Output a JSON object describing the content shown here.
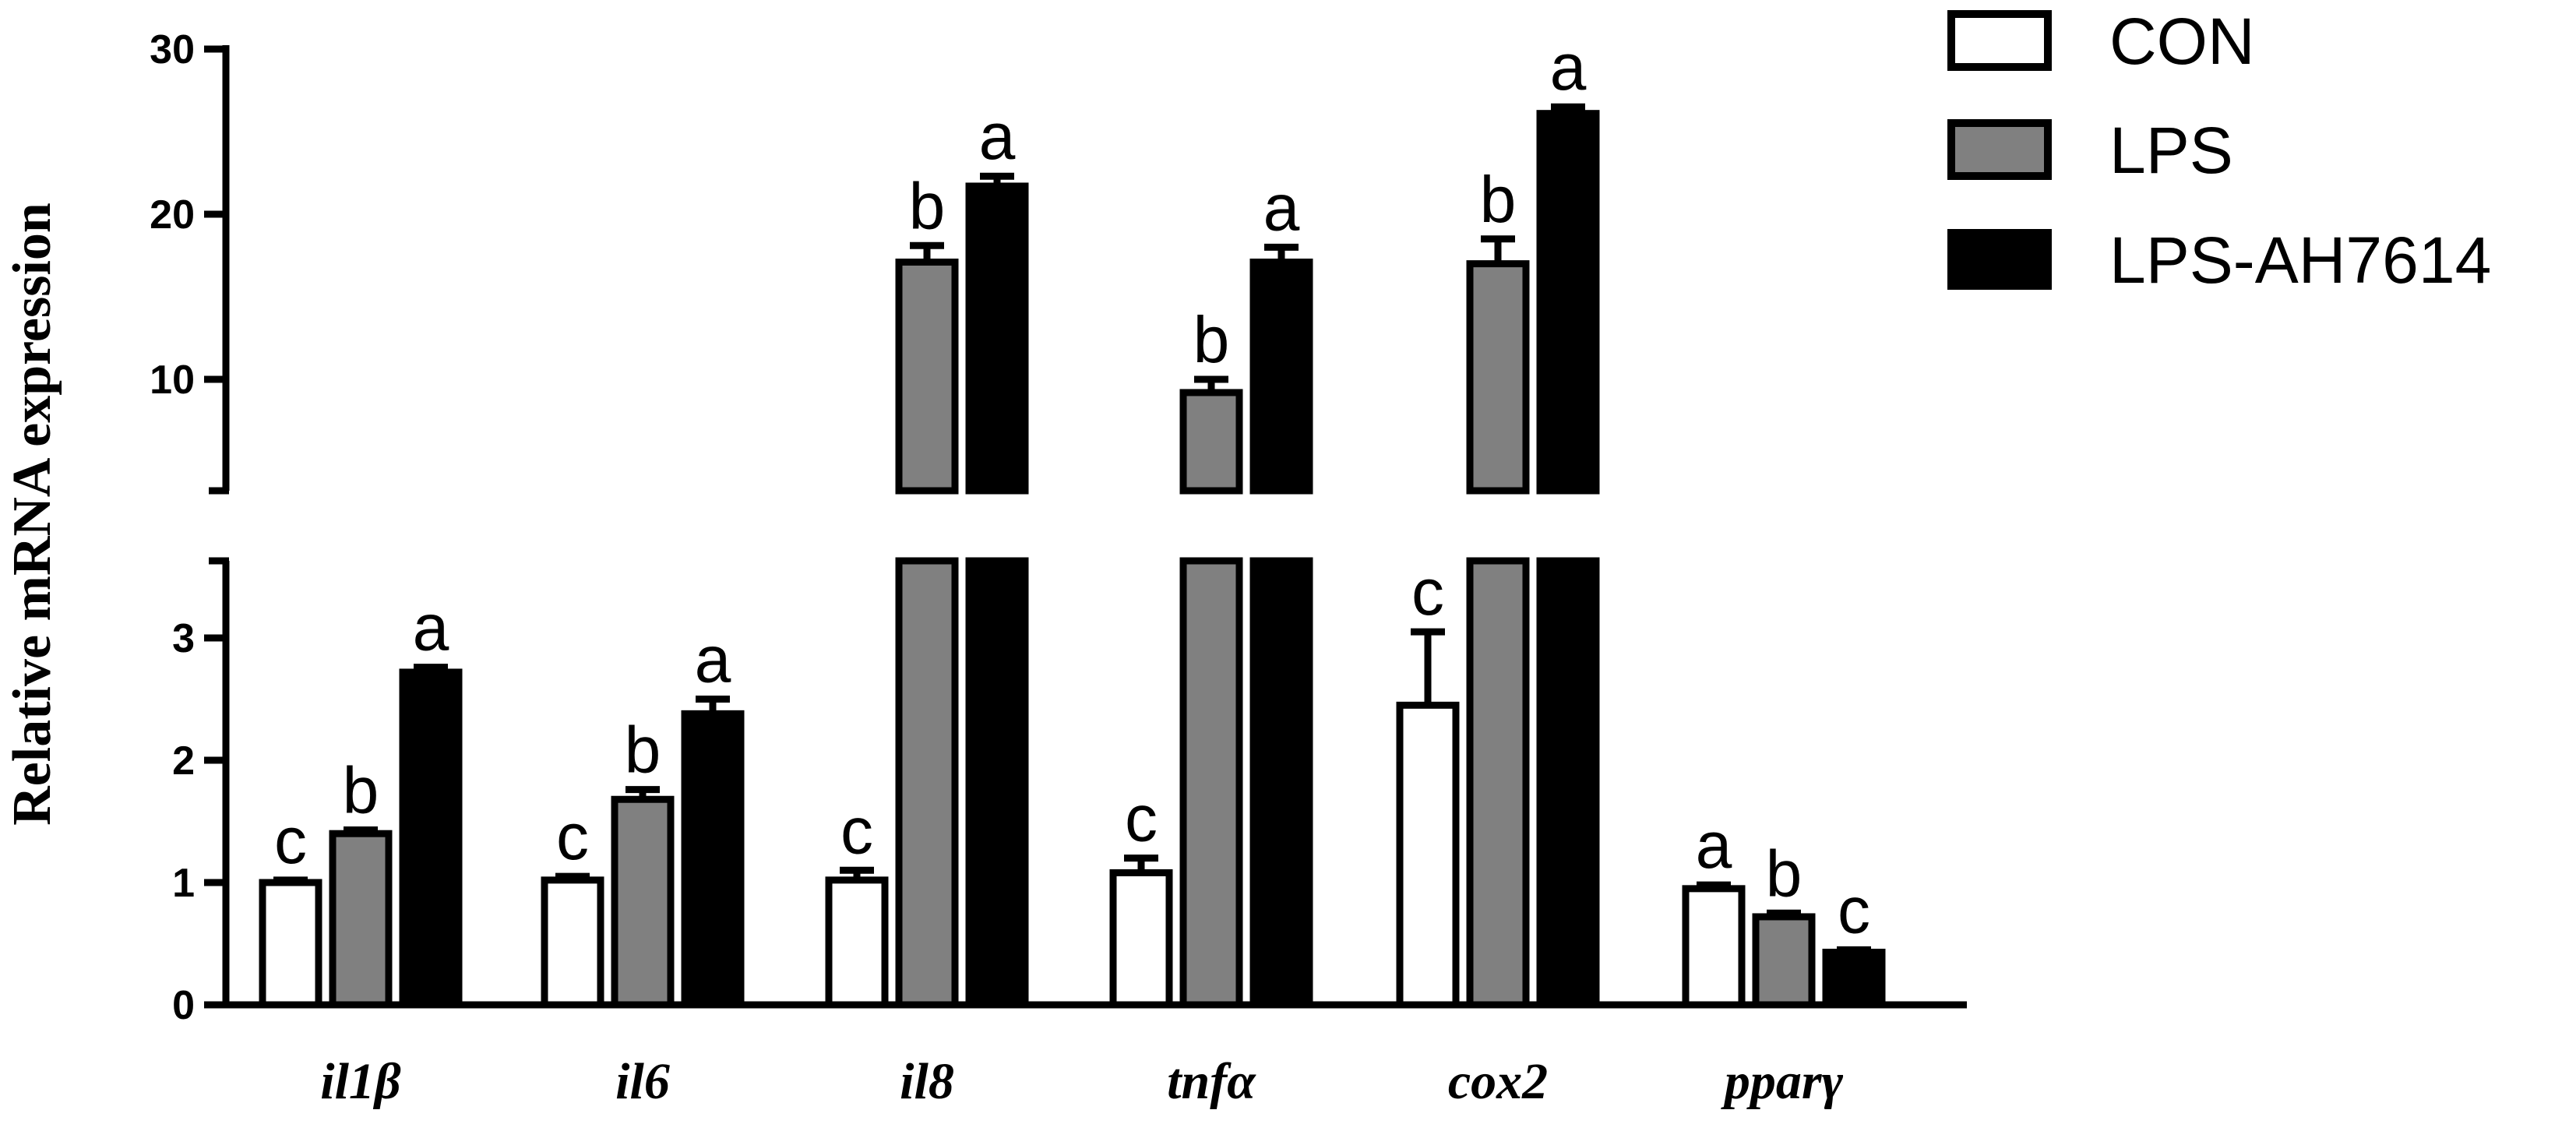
{
  "chart_data": {
    "type": "bar",
    "ylabel": "Relative  mRNA expression",
    "xlabel": "",
    "categories": [
      "il1β",
      "il6",
      "il8",
      "tnfα",
      "cox2",
      "pparγ"
    ],
    "y_axis": {
      "broken": true,
      "lower_segment": {
        "range": [
          0,
          3.6
        ],
        "ticks": [
          "0",
          "1",
          "2",
          "3"
        ]
      },
      "upper_segment": {
        "range": [
          4,
          30
        ],
        "ticks": [
          "10",
          "20",
          "30"
        ]
      }
    },
    "legend_position": "top-right",
    "series": [
      {
        "name": "CON",
        "fill": "#ffffff",
        "values": [
          1.0,
          1.02,
          1.02,
          1.08,
          2.45,
          0.95
        ],
        "errors": [
          0.02,
          0.03,
          0.08,
          0.12,
          0.6,
          0.03
        ],
        "letters": [
          "c",
          "c",
          "c",
          "c",
          "c",
          "a"
        ]
      },
      {
        "name": "LPS",
        "fill": "#808080",
        "values": [
          1.4,
          1.68,
          17.1,
          9.2,
          17.0,
          0.72
        ],
        "errors": [
          0.03,
          0.08,
          1.0,
          0.8,
          1.5,
          0.03
        ],
        "letters": [
          "b",
          "b",
          "b",
          "b",
          "b",
          "b"
        ]
      },
      {
        "name": "LPS-AH7614",
        "fill": "#000000",
        "values": [
          2.72,
          2.38,
          21.7,
          17.1,
          26.1,
          0.43
        ],
        "errors": [
          0.04,
          0.12,
          0.6,
          0.9,
          0.4,
          0.02
        ],
        "letters": [
          "a",
          "a",
          "a",
          "a",
          "a",
          "c"
        ]
      }
    ]
  }
}
